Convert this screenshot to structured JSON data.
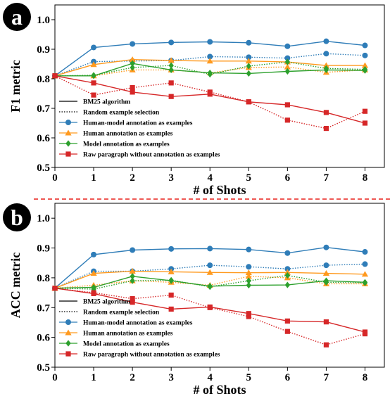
{
  "colors": {
    "blue": "#2f7db8",
    "orange": "#ff9a1f",
    "green": "#2ca02c",
    "red": "#d62728",
    "separator": "#e8211c"
  },
  "legend_entries": [
    {
      "label": "BM25 algorithm",
      "style": "solid",
      "color": "#000000",
      "marker": "none"
    },
    {
      "label": "Random example selection",
      "style": "dotted",
      "color": "#000000",
      "marker": "none"
    },
    {
      "label": "Human-model annotation as examples",
      "style": "solid",
      "color": "#2f7db8",
      "marker": "circle"
    },
    {
      "label": "Human annotation as examples",
      "style": "solid",
      "color": "#ff9a1f",
      "marker": "triangle"
    },
    {
      "label": "Model annotation as examples",
      "style": "solid",
      "color": "#2ca02c",
      "marker": "diamond"
    },
    {
      "label": "Raw paragraph without annotation as examples",
      "style": "solid",
      "color": "#d62728",
      "marker": "square"
    }
  ],
  "chart_data": [
    {
      "type": "line",
      "panel_label": "a",
      "title": "",
      "xlabel": "# of Shots",
      "ylabel": "F1 metric",
      "x": [
        0,
        1,
        2,
        3,
        4,
        5,
        6,
        7,
        8
      ],
      "xlim": [
        0,
        8.5
      ],
      "ylim": [
        0.5,
        1.05
      ],
      "x_ticks": [
        "0",
        "1",
        "2",
        "3",
        "4",
        "5",
        "6",
        "7",
        "8"
      ],
      "y_ticks": [
        "0.5",
        "0.6",
        "0.7",
        "0.8",
        "0.9",
        "1.0"
      ],
      "legend_position": "lower-left",
      "grid": false,
      "series": [
        {
          "name": "Human-model annotation as examples",
          "method": "BM25 algorithm",
          "color": "#2f7db8",
          "marker": "circle",
          "style": "solid",
          "values": [
            0.81,
            0.906,
            0.918,
            0.923,
            0.925,
            0.922,
            0.91,
            0.927,
            0.913
          ]
        },
        {
          "name": "Human-model annotation as examples",
          "method": "Random example selection",
          "color": "#2f7db8",
          "marker": "circle",
          "style": "dotted",
          "values": [
            0.81,
            0.858,
            0.86,
            0.862,
            0.875,
            0.873,
            0.87,
            0.885,
            0.879
          ]
        },
        {
          "name": "Human annotation as examples",
          "method": "BM25 algorithm",
          "color": "#ff9a1f",
          "marker": "triangle",
          "style": "solid",
          "values": [
            0.81,
            0.848,
            0.865,
            0.862,
            0.86,
            0.86,
            0.857,
            0.845,
            0.845
          ]
        },
        {
          "name": "Human annotation as examples",
          "method": "Random example selection",
          "color": "#ff9a1f",
          "marker": "triangle",
          "style": "dotted",
          "values": [
            0.81,
            0.81,
            0.83,
            0.83,
            0.82,
            0.838,
            0.84,
            0.822,
            0.83
          ]
        },
        {
          "name": "Model annotation as examples",
          "method": "BM25 algorithm",
          "color": "#2ca02c",
          "marker": "diamond",
          "style": "solid",
          "values": [
            0.81,
            0.81,
            0.852,
            0.83,
            0.82,
            0.818,
            0.825,
            0.83,
            0.828
          ]
        },
        {
          "name": "Model annotation as examples",
          "method": "Random example selection",
          "color": "#2ca02c",
          "marker": "diamond",
          "style": "dotted",
          "values": [
            0.81,
            0.812,
            0.838,
            0.845,
            0.815,
            0.843,
            0.857,
            0.835,
            0.832
          ]
        },
        {
          "name": "Raw paragraph without annotation as examples",
          "method": "BM25 algorithm",
          "color": "#d62728",
          "marker": "square",
          "style": "solid",
          "values": [
            0.81,
            0.786,
            0.755,
            0.74,
            0.748,
            0.722,
            0.712,
            0.686,
            0.65
          ]
        },
        {
          "name": "Raw paragraph without annotation as examples",
          "method": "Random example selection",
          "color": "#d62728",
          "marker": "square",
          "style": "dotted",
          "values": [
            0.81,
            0.745,
            0.77,
            0.786,
            0.755,
            0.722,
            0.66,
            0.632,
            0.69
          ]
        }
      ]
    },
    {
      "type": "line",
      "panel_label": "b",
      "title": "",
      "xlabel": "# of Shots",
      "ylabel": "ACC metric",
      "x": [
        0,
        1,
        2,
        3,
        4,
        5,
        6,
        7,
        8
      ],
      "xlim": [
        0,
        8.5
      ],
      "ylim": [
        0.5,
        1.05
      ],
      "x_ticks": [
        "0",
        "1",
        "2",
        "3",
        "4",
        "5",
        "6",
        "7",
        "8"
      ],
      "y_ticks": [
        "0.5",
        "0.6",
        "0.7",
        "0.8",
        "0.9",
        "1.0"
      ],
      "legend_position": "lower-left",
      "grid": false,
      "series": [
        {
          "name": "Human-model annotation as examples",
          "method": "BM25 algorithm",
          "color": "#2f7db8",
          "marker": "circle",
          "style": "solid",
          "values": [
            0.765,
            0.878,
            0.893,
            0.897,
            0.898,
            0.895,
            0.883,
            0.902,
            0.887
          ]
        },
        {
          "name": "Human-model annotation as examples",
          "method": "Random example selection",
          "color": "#2f7db8",
          "marker": "circle",
          "style": "dotted",
          "values": [
            0.765,
            0.822,
            0.822,
            0.83,
            0.842,
            0.837,
            0.83,
            0.842,
            0.846
          ]
        },
        {
          "name": "Human annotation as examples",
          "method": "BM25 algorithm",
          "color": "#ff9a1f",
          "marker": "triangle",
          "style": "solid",
          "values": [
            0.765,
            0.815,
            0.822,
            0.82,
            0.818,
            0.817,
            0.818,
            0.815,
            0.812
          ]
        },
        {
          "name": "Human annotation as examples",
          "method": "Random example selection",
          "color": "#ff9a1f",
          "marker": "triangle",
          "style": "dotted",
          "values": [
            0.765,
            0.775,
            0.79,
            0.785,
            0.775,
            0.805,
            0.8,
            0.78,
            0.78
          ]
        },
        {
          "name": "Model annotation as examples",
          "method": "BM25 algorithm",
          "color": "#2ca02c",
          "marker": "diamond",
          "style": "solid",
          "values": [
            0.765,
            0.768,
            0.805,
            0.79,
            0.772,
            0.775,
            0.776,
            0.79,
            0.785
          ]
        },
        {
          "name": "Model annotation as examples",
          "method": "Random example selection",
          "color": "#2ca02c",
          "marker": "diamond",
          "style": "dotted",
          "values": [
            0.765,
            0.762,
            0.79,
            0.792,
            0.77,
            0.79,
            0.808,
            0.785,
            0.783
          ]
        },
        {
          "name": "Raw paragraph without annotation as examples",
          "method": "BM25 algorithm",
          "color": "#d62728",
          "marker": "square",
          "style": "solid",
          "values": [
            0.765,
            0.747,
            0.718,
            0.695,
            0.702,
            0.68,
            0.655,
            0.652,
            0.618
          ]
        },
        {
          "name": "Raw paragraph without annotation as examples",
          "method": "Random example selection",
          "color": "#d62728",
          "marker": "square",
          "style": "dotted",
          "values": [
            0.765,
            0.75,
            0.73,
            0.742,
            0.7,
            0.67,
            0.62,
            0.575,
            0.612
          ]
        }
      ]
    }
  ]
}
